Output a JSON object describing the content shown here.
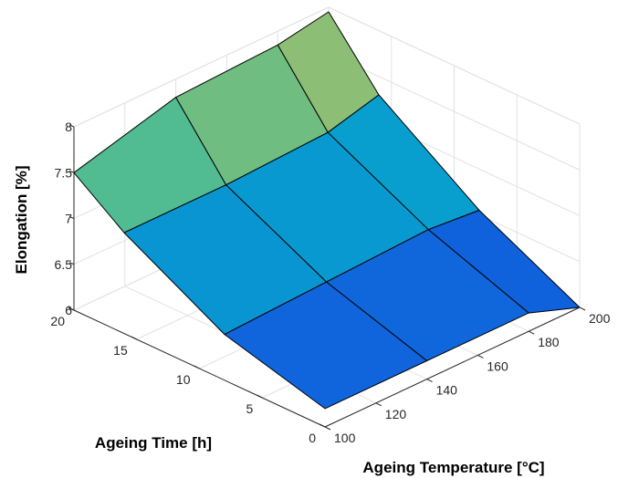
{
  "chart_data": {
    "type": "surface",
    "title": "",
    "xlabel": "Ageing Temperature [°C]",
    "ylabel": "Ageing Time [h]",
    "zlabel": "Elongation [%]",
    "xlim": [
      100,
      200
    ],
    "ylim": [
      0,
      20
    ],
    "zlim": [
      6,
      8
    ],
    "xticks": [
      "100",
      "120",
      "140",
      "160",
      "180",
      "200"
    ],
    "yticks": [
      "0",
      "5",
      "10",
      "15",
      "20"
    ],
    "zticks": [
      "6",
      "6.5",
      "7",
      "7.5",
      "8"
    ],
    "grid": true,
    "colormap": "parula",
    "surface": {
      "temperatures": [
        100,
        140,
        180,
        200
      ],
      "times": [
        0,
        8,
        16,
        20
      ],
      "values": [
        [
          6.2,
          6.2,
          6.2,
          6.0
        ],
        [
          6.5,
          6.55,
          6.6,
          6.55
        ],
        [
          7.1,
          7.1,
          7.15,
          7.3
        ],
        [
          7.5,
          7.8,
          7.85,
          7.95
        ]
      ]
    }
  }
}
